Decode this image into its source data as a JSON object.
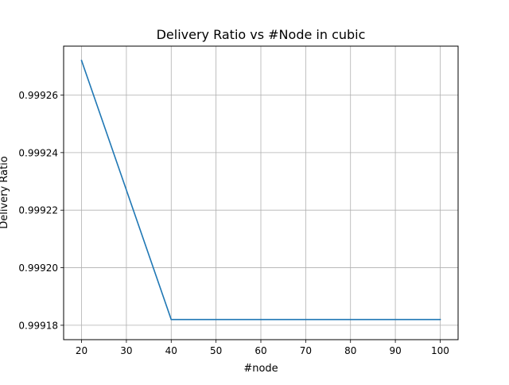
{
  "chart_data": {
    "type": "line",
    "title": "Delivery Ratio vs #Node in cubic",
    "xlabel": "#node",
    "ylabel": "Delivery Ratio",
    "grid": true,
    "xlim": [
      16,
      104
    ],
    "ylim": [
      0.999175,
      0.999277
    ],
    "xticks": [
      20,
      30,
      40,
      50,
      60,
      70,
      80,
      90,
      100
    ],
    "xtick_labels": [
      "20",
      "30",
      "40",
      "50",
      "60",
      "70",
      "80",
      "90",
      "100"
    ],
    "yticks": [
      0.99918,
      0.9992,
      0.99922,
      0.99924,
      0.99926
    ],
    "ytick_labels": [
      "0.99918",
      "0.99920",
      "0.99922",
      "0.99924",
      "0.99926"
    ],
    "series": [
      {
        "x": [
          20,
          40,
          60,
          80,
          100
        ],
        "values": [
          0.999272,
          0.999182,
          0.999182,
          0.999182,
          0.999182
        ],
        "color": "#1f77b4"
      }
    ]
  }
}
